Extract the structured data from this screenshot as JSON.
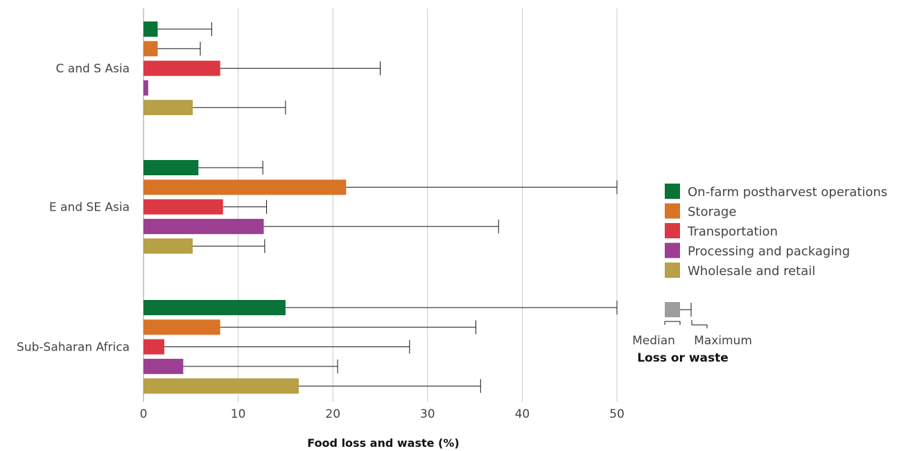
{
  "chart_data": {
    "type": "bar",
    "orientation": "horizontal",
    "title": "",
    "xlabel": "Food loss and waste (%)",
    "ylabel": "",
    "xlim": [
      0,
      50
    ],
    "xticks": [
      0,
      10,
      20,
      30,
      40,
      50
    ],
    "grid": "vertical",
    "legend_position": "right",
    "categories": [
      "C and S Asia",
      "E and SE Asia",
      "Sub-Saharan Africa"
    ],
    "series": [
      {
        "name": "On-farm postharvest operations",
        "color": "#0a7337",
        "median": [
          1.5,
          5.8,
          15.0
        ],
        "maximum": [
          7.2,
          12.6,
          50.0
        ]
      },
      {
        "name": "Storage",
        "color": "#d97427",
        "median": [
          1.5,
          21.4,
          8.1
        ],
        "maximum": [
          6.0,
          50.0,
          35.1
        ]
      },
      {
        "name": "Transportation",
        "color": "#dc3843",
        "median": [
          8.1,
          8.4,
          2.2
        ],
        "maximum": [
          25.0,
          13.0,
          28.1
        ]
      },
      {
        "name": "Processing and packaging",
        "color": "#9c3f93",
        "median": [
          0.5,
          12.7,
          4.2
        ],
        "maximum": [
          0.5,
          37.5,
          20.5
        ]
      },
      {
        "name": "Wholesale and retail",
        "color": "#b7a045",
        "median": [
          5.2,
          5.2,
          16.4
        ],
        "maximum": [
          15.0,
          12.8,
          35.6
        ]
      }
    ],
    "key": {
      "title": "Loss or waste",
      "median_label": "Median",
      "maximum_label": "Maximum",
      "color": "#9d9d9d"
    }
  }
}
